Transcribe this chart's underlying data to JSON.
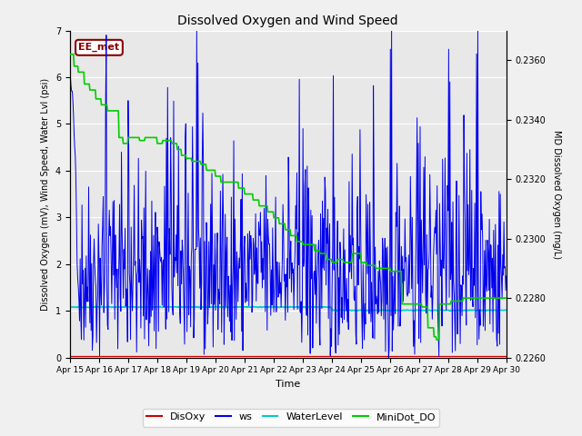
{
  "title": "Dissolved Oxygen and Wind Speed",
  "xlabel": "Time",
  "ylabel_left": "Dissolved Oxygen (mV), Wind Speed, Water Lvl (psi)",
  "ylabel_right": "MD Dissolved Oxygen (mg/L)",
  "annotation": "EE_met",
  "ylim_left": [
    0.0,
    7.0
  ],
  "ylim_right": [
    0.226,
    0.237
  ],
  "xtick_labels": [
    "Apr 15",
    "Apr 16",
    "Apr 17",
    "Apr 18",
    "Apr 19",
    "Apr 20",
    "Apr 21",
    "Apr 22",
    "Apr 23",
    "Apr 24",
    "Apr 25",
    "Apr 26",
    "Apr 27",
    "Apr 28",
    "Apr 29",
    "Apr 30"
  ],
  "legend_labels": [
    "DisOxy",
    "ws",
    "WaterLevel",
    "MiniDot_DO"
  ],
  "legend_colors": [
    "#cc0000",
    "#0000ee",
    "#00cccc",
    "#00cc00"
  ],
  "bg_color": "#e8e8e8",
  "grid_color": "#ffffff",
  "fig_facecolor": "#f0f0f0"
}
